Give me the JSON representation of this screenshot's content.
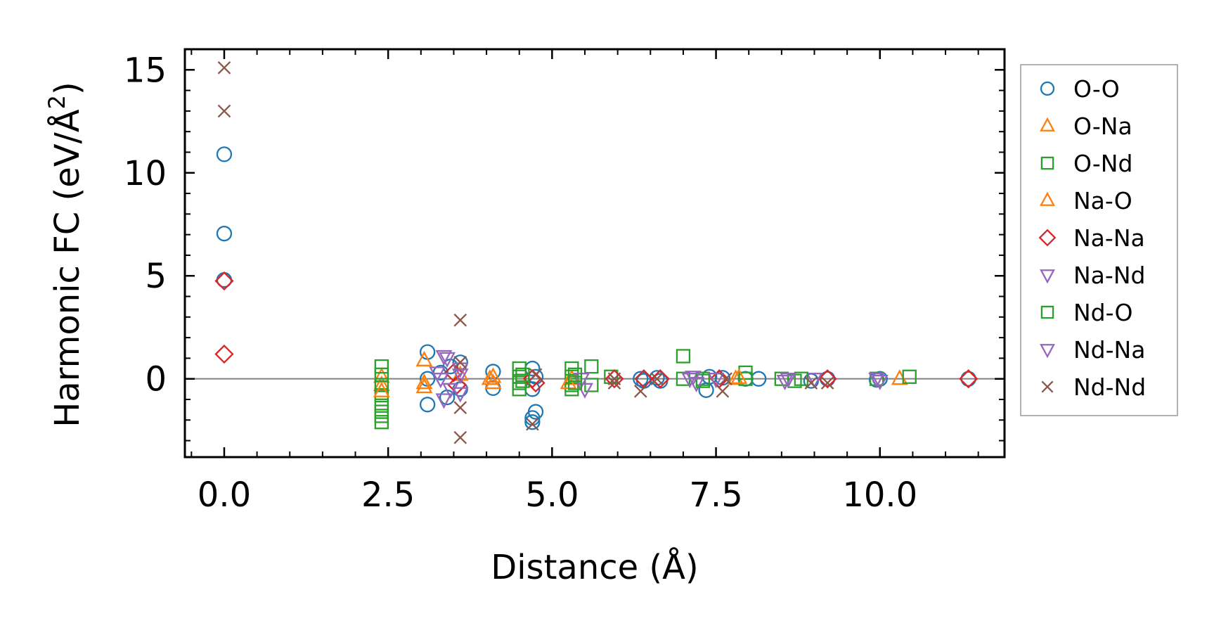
{
  "chart_data": {
    "type": "scatter",
    "title": "",
    "xlabel": "Distance (Å)",
    "ylabel_main": "Harmonic FC (eV/Å",
    "ylabel_sup": "2",
    "ylabel_close": ")",
    "xlim": [
      -0.6,
      11.9
    ],
    "ylim": [
      -3.8,
      16.0
    ],
    "xticks": [
      0.0,
      2.5,
      5.0,
      7.5,
      10.0
    ],
    "xtick_labels": [
      "0.0",
      "2.5",
      "5.0",
      "7.5",
      "10.0"
    ],
    "yticks": [
      0,
      5,
      10,
      15
    ],
    "ytick_labels": [
      "0",
      "5",
      "10",
      "15"
    ],
    "zero_line": true,
    "grid": false,
    "legend_position": "outside-right",
    "series": [
      {
        "name": "O-O",
        "marker": "circle",
        "color": "#1f77b4",
        "points": [
          [
            0.0,
            10.9
          ],
          [
            0.0,
            7.05
          ],
          [
            0.0,
            4.8
          ],
          [
            3.1,
            1.3
          ],
          [
            3.1,
            -1.25
          ],
          [
            3.1,
            0.0
          ],
          [
            3.3,
            0.3
          ],
          [
            3.4,
            -0.9
          ],
          [
            3.45,
            0.6
          ],
          [
            3.6,
            0.8
          ],
          [
            3.6,
            -0.5
          ],
          [
            4.1,
            0.35
          ],
          [
            4.1,
            -0.45
          ],
          [
            4.7,
            0.5
          ],
          [
            4.7,
            -0.5
          ],
          [
            4.75,
            -1.6
          ],
          [
            4.7,
            -1.9
          ],
          [
            4.7,
            -2.1
          ],
          [
            4.75,
            0.1
          ],
          [
            6.35,
            0.0
          ],
          [
            6.4,
            -0.1
          ],
          [
            6.6,
            0.05
          ],
          [
            6.65,
            -0.1
          ],
          [
            7.35,
            -0.55
          ],
          [
            7.4,
            0.1
          ],
          [
            7.6,
            0.05
          ],
          [
            7.95,
            0.0
          ],
          [
            8.15,
            0.0
          ],
          [
            8.95,
            -0.1
          ],
          [
            9.2,
            0.0
          ],
          [
            9.95,
            -0.05
          ],
          [
            10.0,
            0.0
          ],
          [
            11.35,
            0.0
          ]
        ]
      },
      {
        "name": "O-Na",
        "marker": "triangle-up",
        "color": "#ff7f0e",
        "points": [
          [
            2.4,
            0.1
          ],
          [
            2.4,
            -0.3
          ],
          [
            3.05,
            0.9
          ],
          [
            3.05,
            -0.4
          ],
          [
            3.6,
            0.2
          ],
          [
            4.05,
            0.0
          ],
          [
            4.1,
            -0.2
          ],
          [
            5.3,
            0.0
          ],
          [
            7.8,
            0.0
          ],
          [
            10.3,
            0.0
          ]
        ]
      },
      {
        "name": "O-Nd",
        "marker": "square",
        "color": "#2ca02c",
        "points": [
          [
            2.4,
            0.6
          ],
          [
            2.4,
            0.2
          ],
          [
            2.4,
            -0.3
          ],
          [
            2.4,
            -0.8
          ],
          [
            2.4,
            -1.3
          ],
          [
            2.4,
            -1.6
          ],
          [
            2.4,
            -1.8
          ],
          [
            2.4,
            -2.1
          ],
          [
            4.5,
            0.5
          ],
          [
            4.5,
            0.1
          ],
          [
            4.5,
            -0.2
          ],
          [
            4.5,
            -0.5
          ],
          [
            5.3,
            0.5
          ],
          [
            5.3,
            0.1
          ],
          [
            5.3,
            -0.3
          ],
          [
            5.3,
            -0.5
          ],
          [
            5.6,
            0.6
          ],
          [
            5.6,
            -0.3
          ],
          [
            5.9,
            0.1
          ],
          [
            7.0,
            1.1
          ],
          [
            7.0,
            0.0
          ],
          [
            7.3,
            0.0
          ],
          [
            7.95,
            0.3
          ],
          [
            7.95,
            0.0
          ],
          [
            8.5,
            0.0
          ],
          [
            8.7,
            -0.1
          ],
          [
            9.95,
            0.0
          ],
          [
            10.45,
            0.1
          ]
        ]
      },
      {
        "name": "Na-O",
        "marker": "triangle-up",
        "color": "#ff7f0e",
        "points": [
          [
            2.4,
            -0.6
          ],
          [
            3.05,
            -0.2
          ],
          [
            4.1,
            0.1
          ],
          [
            5.25,
            -0.2
          ],
          [
            7.85,
            0.05
          ]
        ]
      },
      {
        "name": "Na-Na",
        "marker": "diamond",
        "color": "#d62728",
        "points": [
          [
            0.0,
            4.75
          ],
          [
            0.0,
            1.2
          ],
          [
            3.5,
            0.3
          ],
          [
            3.55,
            -0.3
          ],
          [
            4.7,
            0.0
          ],
          [
            4.75,
            -0.2
          ],
          [
            5.95,
            0.0
          ],
          [
            6.4,
            0.0
          ],
          [
            6.65,
            0.0
          ],
          [
            7.55,
            0.0
          ],
          [
            9.2,
            0.0
          ],
          [
            11.35,
            0.0
          ]
        ]
      },
      {
        "name": "Na-Nd",
        "marker": "triangle-down",
        "color": "#9467bd",
        "points": [
          [
            3.3,
            0.0
          ],
          [
            3.35,
            -1.0
          ],
          [
            3.4,
            1.0
          ],
          [
            3.6,
            0.5
          ],
          [
            3.6,
            -0.7
          ],
          [
            5.45,
            0.0
          ],
          [
            5.5,
            -0.5
          ],
          [
            7.1,
            0.0
          ],
          [
            7.2,
            -0.2
          ],
          [
            7.5,
            0.0
          ],
          [
            8.55,
            -0.1
          ],
          [
            9.0,
            0.0
          ],
          [
            9.95,
            0.0
          ]
        ]
      },
      {
        "name": "Nd-O",
        "marker": "square",
        "color": "#2ca02c",
        "points": [
          [
            4.55,
            0.2
          ],
          [
            4.55,
            -0.1
          ],
          [
            5.35,
            0.2
          ],
          [
            5.35,
            -0.2
          ],
          [
            7.3,
            -0.1
          ],
          [
            8.8,
            0.0
          ]
        ]
      },
      {
        "name": "Nd-Na",
        "marker": "triangle-down",
        "color": "#9467bd",
        "points": [
          [
            3.25,
            0.3
          ],
          [
            3.35,
            1.1
          ],
          [
            3.45,
            -0.5
          ],
          [
            3.6,
            0.2
          ],
          [
            7.15,
            0.1
          ],
          [
            8.6,
            0.0
          ],
          [
            10.0,
            -0.1
          ]
        ]
      },
      {
        "name": "Nd-Nd",
        "marker": "x",
        "color": "#8c564b",
        "points": [
          [
            0.0,
            15.1
          ],
          [
            0.0,
            13.0
          ],
          [
            3.6,
            2.85
          ],
          [
            3.6,
            -1.4
          ],
          [
            3.6,
            -2.85
          ],
          [
            3.6,
            0.8
          ],
          [
            4.7,
            -2.2
          ],
          [
            4.75,
            0.2
          ],
          [
            5.95,
            0.0
          ],
          [
            5.95,
            -0.2
          ],
          [
            6.35,
            -0.6
          ],
          [
            6.6,
            0.0
          ],
          [
            7.6,
            -0.6
          ],
          [
            7.65,
            0.0
          ],
          [
            8.95,
            -0.2
          ],
          [
            9.2,
            -0.2
          ]
        ]
      }
    ]
  }
}
